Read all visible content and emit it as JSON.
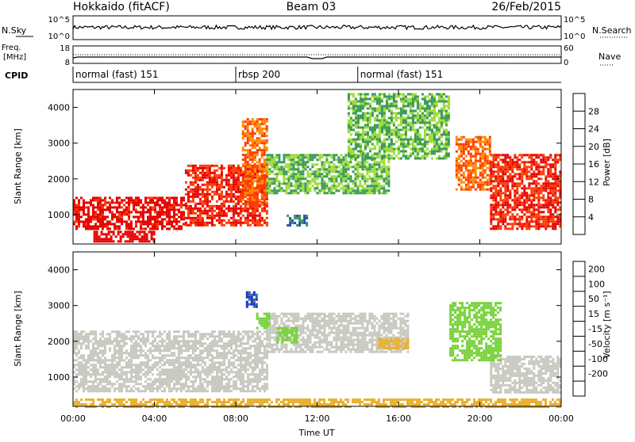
{
  "header": {
    "radar": "Hokkaido (fitACF)",
    "beam": "Beam 03",
    "date": "26/Feb/2015"
  },
  "noise_panel": {
    "left_label": "N.Sky",
    "right_label": "N.Search",
    "left_ticks": [
      "10^5",
      "10^0"
    ],
    "right_ticks": [
      "10^5",
      "10^0"
    ]
  },
  "freq_panel": {
    "left_label_1": "Freq.",
    "left_label_2": "[MHz]",
    "right_label": "Nave",
    "left_ticks": [
      "18",
      "8"
    ],
    "right_ticks": [
      "60",
      "0"
    ]
  },
  "cpid_panel": {
    "label": "CPID",
    "modes": [
      {
        "name": "normal (fast) 151",
        "start_hour": 0
      },
      {
        "name": "rbsp 200",
        "start_hour": 8
      },
      {
        "name": "normal (fast) 151",
        "start_hour": 14
      }
    ]
  },
  "power_colorbar": {
    "label": "Power [dB]",
    "levels": [
      "4",
      "8",
      "12",
      "16",
      "20",
      "24",
      "28"
    ],
    "colors": [
      "#0000ff",
      "#2a50b4",
      "#3a9a5a",
      "#9fdc3a",
      "#ffcc00",
      "#ff8a00",
      "#ff3a00",
      "#e60000"
    ]
  },
  "velocity_colorbar": {
    "label": "Velocity [m s⁻¹]",
    "levels": [
      "200",
      "100",
      "50",
      "15",
      "-15",
      "-50",
      "-100",
      "-200"
    ],
    "colors": [
      "#1a2cc8",
      "#2e6a9a",
      "#3a9a3a",
      "#78d23a",
      "#c8c8c0",
      "#e8b030",
      "#ff8c00",
      "#ff5000",
      "#ff0000"
    ]
  },
  "chart_data": [
    {
      "type": "heatmap",
      "panel": "power",
      "ylabel": "Slant Range [km]",
      "y_ticks": [
        1000,
        2000,
        3000,
        4000
      ],
      "ylim": [
        180,
        4500
      ],
      "xlim": [
        0,
        24
      ],
      "regions": [
        {
          "x_start": 0.0,
          "x_end": 5.5,
          "range_low": 600,
          "range_high": 1500,
          "power_db": 28
        },
        {
          "x_start": 5.5,
          "x_end": 9.5,
          "range_low": 700,
          "range_high": 2400,
          "power_db": 26
        },
        {
          "x_start": 1.0,
          "x_end": 4.0,
          "range_low": 250,
          "range_high": 550,
          "power_db": 30
        },
        {
          "x_start": 8.3,
          "x_end": 9.5,
          "range_low": 1300,
          "range_high": 3700,
          "power_db": 22
        },
        {
          "x_start": 9.5,
          "x_end": 15.5,
          "range_low": 1600,
          "range_high": 2700,
          "power_db": 10
        },
        {
          "x_start": 10.5,
          "x_end": 11.5,
          "range_low": 700,
          "range_high": 1000,
          "power_db": 6
        },
        {
          "x_start": 18.8,
          "x_end": 20.5,
          "range_low": 1700,
          "range_high": 3200,
          "power_db": 22
        },
        {
          "x_start": 20.5,
          "x_end": 24.0,
          "range_low": 600,
          "range_high": 2700,
          "power_db": 26
        },
        {
          "x_start": 13.5,
          "x_end": 18.5,
          "range_low": 2600,
          "range_high": 4400,
          "power_db": 10
        }
      ]
    },
    {
      "type": "heatmap",
      "panel": "velocity",
      "xlabel": "Time UT",
      "ylabel": "Slant Range [km]",
      "x_ticks": [
        "00:00",
        "04:00",
        "08:00",
        "12:00",
        "16:00",
        "20:00",
        "00:00"
      ],
      "y_ticks": [
        1000,
        2000,
        3000,
        4000
      ],
      "ylim": [
        180,
        4500
      ],
      "xlim": [
        0,
        24
      ],
      "regions": [
        {
          "x_start": 0.0,
          "x_end": 9.5,
          "range_low": 600,
          "range_high": 2300,
          "velocity": 0
        },
        {
          "x_start": 9.5,
          "x_end": 16.5,
          "range_low": 1700,
          "range_high": 2800,
          "velocity": 0
        },
        {
          "x_start": 20.5,
          "x_end": 24.0,
          "range_low": 600,
          "range_high": 1600,
          "velocity": 0
        },
        {
          "x_start": 8.5,
          "x_end": 9.0,
          "range_low": 3000,
          "range_high": 3400,
          "velocity": 200
        },
        {
          "x_start": 9.0,
          "x_end": 9.6,
          "range_low": 2400,
          "range_high": 2800,
          "velocity": 40
        },
        {
          "x_start": 10.0,
          "x_end": 11.0,
          "range_low": 2000,
          "range_high": 2400,
          "velocity": 30
        },
        {
          "x_start": 15.0,
          "x_end": 16.5,
          "range_low": 1800,
          "range_high": 2100,
          "velocity": -40
        },
        {
          "x_start": 18.5,
          "x_end": 21.0,
          "range_low": 1500,
          "range_high": 3100,
          "velocity": 30
        },
        {
          "x_start": 0.0,
          "x_end": 24.0,
          "range_low": 180,
          "range_high": 400,
          "velocity": -40
        }
      ]
    }
  ]
}
